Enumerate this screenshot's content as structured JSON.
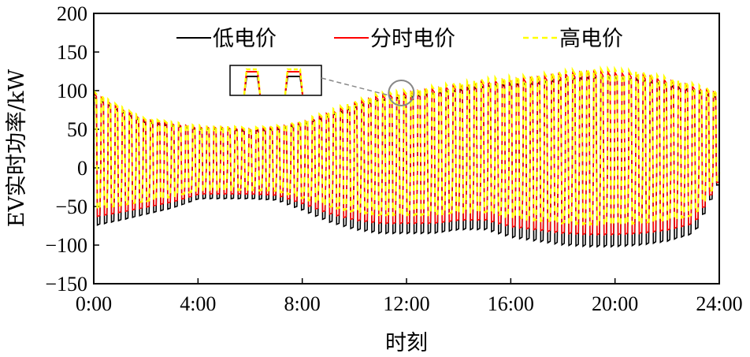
{
  "chart_data": {
    "type": "line",
    "xlabel": "时刻",
    "ylabel": "EV实时功率/kW",
    "xlim": [
      0,
      24
    ],
    "ylim": [
      -150,
      200
    ],
    "x_ticks": [
      0,
      4,
      8,
      12,
      16,
      20,
      24
    ],
    "x_tick_labels": [
      "0:00",
      "4:00",
      "8:00",
      "12:00",
      "16:00",
      "20:00",
      "24:00"
    ],
    "y_ticks": [
      -150,
      -100,
      -50,
      0,
      50,
      100,
      150,
      200
    ],
    "y_tick_labels": [
      "−150",
      "−100",
      "−50",
      "0",
      "50",
      "100",
      "150",
      "200"
    ],
    "grid": false,
    "legend_position": "top",
    "series": [
      {
        "name": "低电价",
        "color": "#000000",
        "style": "solid"
      },
      {
        "name": "分时电价",
        "color": "#ff0000",
        "style": "solid"
      },
      {
        "name": "高电价",
        "color": "#ffff00",
        "style": "dashed"
      }
    ],
    "envelope": {
      "times": [
        0,
        1,
        2,
        3,
        4,
        5,
        6,
        7,
        8,
        9,
        10,
        11,
        12,
        13,
        14,
        15,
        16,
        17,
        18,
        19,
        20,
        21,
        22,
        23,
        24
      ],
      "peaks": [
        102,
        82,
        65,
        60,
        55,
        55,
        52,
        54,
        60,
        72,
        85,
        96,
        100,
        105,
        110,
        115,
        118,
        120,
        125,
        128,
        128,
        125,
        118,
        110,
        100
      ],
      "troughs": [
        -75,
        -68,
        -60,
        -52,
        -40,
        -40,
        -40,
        -42,
        -55,
        -70,
        -80,
        -85,
        -85,
        -85,
        -80,
        -80,
        -90,
        -95,
        -100,
        -102,
        -102,
        -100,
        -95,
        -85,
        -15
      ]
    },
    "inset": {
      "annotates_time": 11.8,
      "annotates_value": 97
    }
  }
}
